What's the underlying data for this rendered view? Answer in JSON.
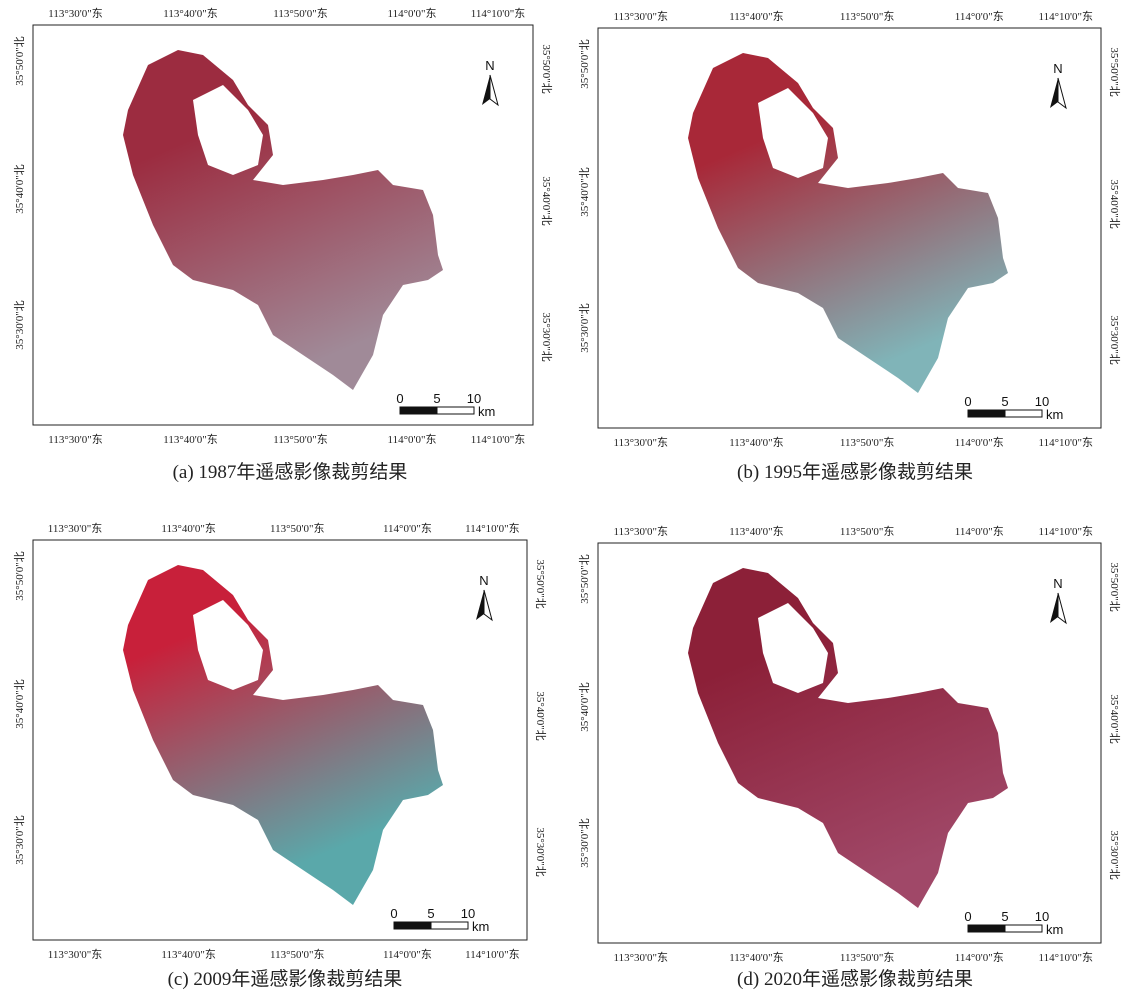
{
  "panels": [
    {
      "caption": "(a)  1987年遥感影像裁剪结果",
      "top_labels": [
        "113°30'0\"东",
        "113°40'0\"东",
        "113°50'0\"东",
        "114°0'0\"东",
        "114°10'0\"东"
      ],
      "bottom_labels": [
        "113°30'0\"东",
        "113°40'0\"东",
        "113°50'0\"东",
        "114°0'0\"东",
        "114°10'0\"东"
      ],
      "left_labels": [
        "35°50'0\"北",
        "35°40'0\"北",
        "35°30'0\"北"
      ],
      "right_labels": [
        "35°50'0\"北",
        "35°40'0\"北",
        "35°30'0\"北"
      ],
      "north": "N",
      "scale_ticks": [
        0,
        5,
        10
      ],
      "scale_unit": "km"
    },
    {
      "caption": "(b)  1995年遥感影像裁剪结果",
      "top_labels": [
        "113°30'0\"东",
        "113°40'0\"东",
        "113°50'0\"东",
        "114°0'0\"东",
        "114°10'0\"东"
      ],
      "bottom_labels": [
        "113°30'0\"东",
        "113°40'0\"东",
        "113°50'0\"东",
        "114°0'0\"东",
        "114°10'0\"东"
      ],
      "left_labels": [
        "35°50'0\"北",
        "35°40'0\"北",
        "35°30'0\"北"
      ],
      "right_labels": [
        "35°50'0\"北",
        "35°40'0\"北",
        "35°30'0\"北"
      ],
      "north": "N",
      "scale_ticks": [
        0,
        5,
        10
      ],
      "scale_unit": "km"
    },
    {
      "caption": "(c)  2009年遥感影像裁剪结果",
      "top_labels": [
        "113°30'0\"东",
        "113°40'0\"东",
        "113°50'0\"东",
        "114°0'0\"东",
        "114°10'0\"东"
      ],
      "bottom_labels": [
        "113°30'0\"东",
        "113°40'0\"东",
        "113°50'0\"东",
        "114°0'0\"东",
        "114°10'0\"东"
      ],
      "left_labels": [
        "35°50'0\"北",
        "35°40'0\"北",
        "35°30'0\"北"
      ],
      "right_labels": [
        "35°50'0\"北",
        "35°40'0\"北",
        "35°30'0\"北"
      ],
      "north": "N",
      "scale_ticks": [
        0,
        5,
        10
      ],
      "scale_unit": "km"
    },
    {
      "caption": "(d)  2020年遥感影像裁剪结果",
      "top_labels": [
        "113°30'0\"东",
        "113°40'0\"东",
        "113°50'0\"东",
        "114°0'0\"东",
        "114°10'0\"东"
      ],
      "bottom_labels": [
        "113°30'0\"东",
        "113°40'0\"东",
        "113°50'0\"东",
        "114°0'0\"东",
        "114°10'0\"东"
      ],
      "left_labels": [
        "35°50'0\"北",
        "35°40'0\"北",
        "35°30'0\"北"
      ],
      "right_labels": [
        "35°50'0\"北",
        "35°40'0\"北",
        "35°30'0\"北"
      ],
      "north": "N",
      "scale_ticks": [
        0,
        5,
        10
      ],
      "scale_unit": "km"
    }
  ]
}
